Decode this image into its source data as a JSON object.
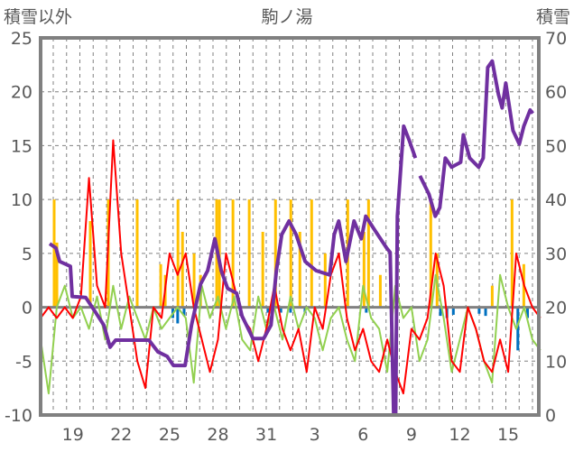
{
  "chart_data": {
    "type": "line",
    "title": "駒ノ湯",
    "ylabel_left": "積雪以外",
    "ylabel_right": "積雪",
    "ylim_left": [
      -10,
      25
    ],
    "ylim_right": [
      0,
      70
    ],
    "yticks_left": [
      "25",
      "20",
      "15",
      "10",
      "5",
      "0",
      "-5",
      "-10"
    ],
    "yticks_right": [
      "70",
      "60",
      "50",
      "40",
      "30",
      "20",
      "10",
      "0"
    ],
    "xlim_days": [
      0,
      30.9
    ],
    "xticks": [
      {
        "t": 2,
        "label": "19"
      },
      {
        "t": 5,
        "label": "22"
      },
      {
        "t": 8,
        "label": "25"
      },
      {
        "t": 11,
        "label": "28"
      },
      {
        "t": 14,
        "label": "31"
      },
      {
        "t": 17,
        "label": "3"
      },
      {
        "t": 20,
        "label": "6"
      },
      {
        "t": 23,
        "label": "9"
      },
      {
        "t": 26,
        "label": "12"
      },
      {
        "t": 29,
        "label": "15"
      }
    ],
    "grid": true,
    "colors": {
      "red": "#FF0000",
      "green": "#92D050",
      "yellow": "#FFC000",
      "blue": "#0070C0",
      "purple": "#7030A0",
      "axis": "#808080"
    },
    "series": [
      {
        "name": "precip",
        "kind": "bar",
        "axis": "left",
        "color": "#FFC000",
        "t": [
          0.84,
          1.01,
          3.08,
          4.2,
          5.99,
          7.45,
          7.73,
          8.52,
          8.8,
          9.52,
          9.92,
          10.92,
          11.09,
          11.93,
          12.94,
          13.78,
          14.57,
          15.52,
          16.08,
          16.81,
          17.65,
          19.05,
          20.06,
          20.34,
          21.07,
          24.2,
          24.59,
          28.01,
          29.24,
          29.97
        ],
        "values": [
          10,
          6,
          8,
          10,
          10,
          4,
          3,
          10,
          7,
          5,
          3,
          10,
          10,
          10,
          10,
          7,
          10,
          10,
          7,
          10,
          5,
          10,
          7,
          10,
          3,
          10,
          5,
          2,
          10,
          4
        ]
      },
      {
        "name": "negative",
        "kind": "bar",
        "axis": "left",
        "color": "#0070C0",
        "t": [
          8.2,
          8.5,
          8.9,
          14.1,
          14.9,
          15.5,
          16.4,
          20.2,
          24.8,
          25.2,
          25.6,
          27.2,
          27.6,
          29.6,
          30.2
        ],
        "values": [
          -1,
          -1.5,
          -0.8,
          -0.5,
          -0.5,
          -0.5,
          -0.5,
          -0.5,
          -0.8,
          -1,
          -0.7,
          -0.6,
          -0.8,
          -4,
          -1
        ]
      },
      {
        "name": "green",
        "kind": "line",
        "axis": "left",
        "color": "#92D050",
        "t0": 0,
        "dt": 0.5,
        "values": [
          -3,
          -8,
          0,
          2,
          -1,
          0,
          -2,
          1,
          -3,
          2,
          -2,
          1,
          -1,
          -3,
          0,
          -2,
          -1,
          0,
          -1,
          -7,
          2,
          -1,
          1,
          -2,
          1,
          -3,
          -4,
          1,
          -2,
          0,
          -3,
          1,
          -2,
          0,
          -1,
          -4,
          -1,
          0,
          -3,
          -5,
          2,
          -1,
          -2,
          -6,
          2,
          -1,
          0,
          -5,
          -3,
          3,
          -1,
          -6,
          -3,
          0,
          -2,
          -5,
          -7,
          3,
          0,
          -2,
          0,
          -3,
          -4
        ]
      },
      {
        "name": "red",
        "kind": "line",
        "axis": "left",
        "color": "#FF0000",
        "t0": 0,
        "dt": 0.5,
        "values": [
          -1,
          0,
          -1,
          0,
          -1,
          1,
          12,
          2,
          0,
          15.5,
          5,
          0,
          -5,
          -7.5,
          0,
          -1,
          5,
          3,
          5,
          0,
          -3,
          -6,
          -3,
          5,
          2,
          -1,
          -2,
          -5,
          -2,
          2,
          -2,
          -4,
          -2,
          -6,
          0,
          -2,
          3,
          5,
          -1,
          -4,
          -2,
          -5,
          -6,
          -3,
          -6,
          -8,
          -2,
          -3,
          -1,
          5,
          2,
          -5,
          -6,
          0,
          -2,
          -5,
          -6,
          -3,
          -6,
          5,
          2,
          0,
          -1
        ]
      },
      {
        "name": "snow-depth",
        "kind": "line",
        "axis": "right",
        "color": "#7030A0",
        "t": [
          0.56,
          0.95,
          1.18,
          1.85,
          1.96,
          2.8,
          3.36,
          3.92,
          4.31,
          4.65,
          6.72,
          7.28,
          7.84,
          8.24,
          8.96,
          9.36,
          9.92,
          10.36,
          10.81,
          11.2,
          11.6,
          12.16,
          12.49,
          13.17,
          13.84,
          14.29,
          14.62,
          14.96,
          15.41,
          15.85,
          16.41,
          17.09,
          17.93,
          18.21,
          18.49,
          18.94,
          19.44,
          19.89,
          20.17,
          20.73,
          21.46,
          21.68,
          21.9,
          22.02,
          22.13,
          22.52,
          22.86,
          23.25,
          null,
          23.53,
          24.09,
          24.48,
          24.76,
          25.1,
          25.49,
          26.05,
          26.22,
          26.61,
          27.17,
          27.45,
          27.73,
          28.01,
          28.4,
          28.63,
          28.85,
          29.3,
          29.69,
          29.97,
          30.36,
          30.53
        ],
        "values": [
          31.8,
          31,
          28.5,
          27.6,
          22,
          21.8,
          19.3,
          16.7,
          12.6,
          13.9,
          13.9,
          11.7,
          10.9,
          9.2,
          9.2,
          16.7,
          24.3,
          26.8,
          32.7,
          26.8,
          23.5,
          22.6,
          18.4,
          14.2,
          14.2,
          16.7,
          26.8,
          33.5,
          36,
          33.5,
          28.5,
          26.8,
          26,
          33.5,
          36,
          28.5,
          36,
          32.7,
          36.9,
          34.3,
          31,
          30.2,
          0,
          0,
          36.9,
          53.6,
          51,
          47.7,
          null,
          44.4,
          41,
          36.9,
          38.5,
          47.7,
          46,
          46.9,
          52,
          47.7,
          46,
          47.7,
          64.5,
          65.7,
          59.5,
          57,
          61.6,
          52.8,
          50.3,
          53.6,
          56.6,
          56
        ]
      }
    ]
  }
}
